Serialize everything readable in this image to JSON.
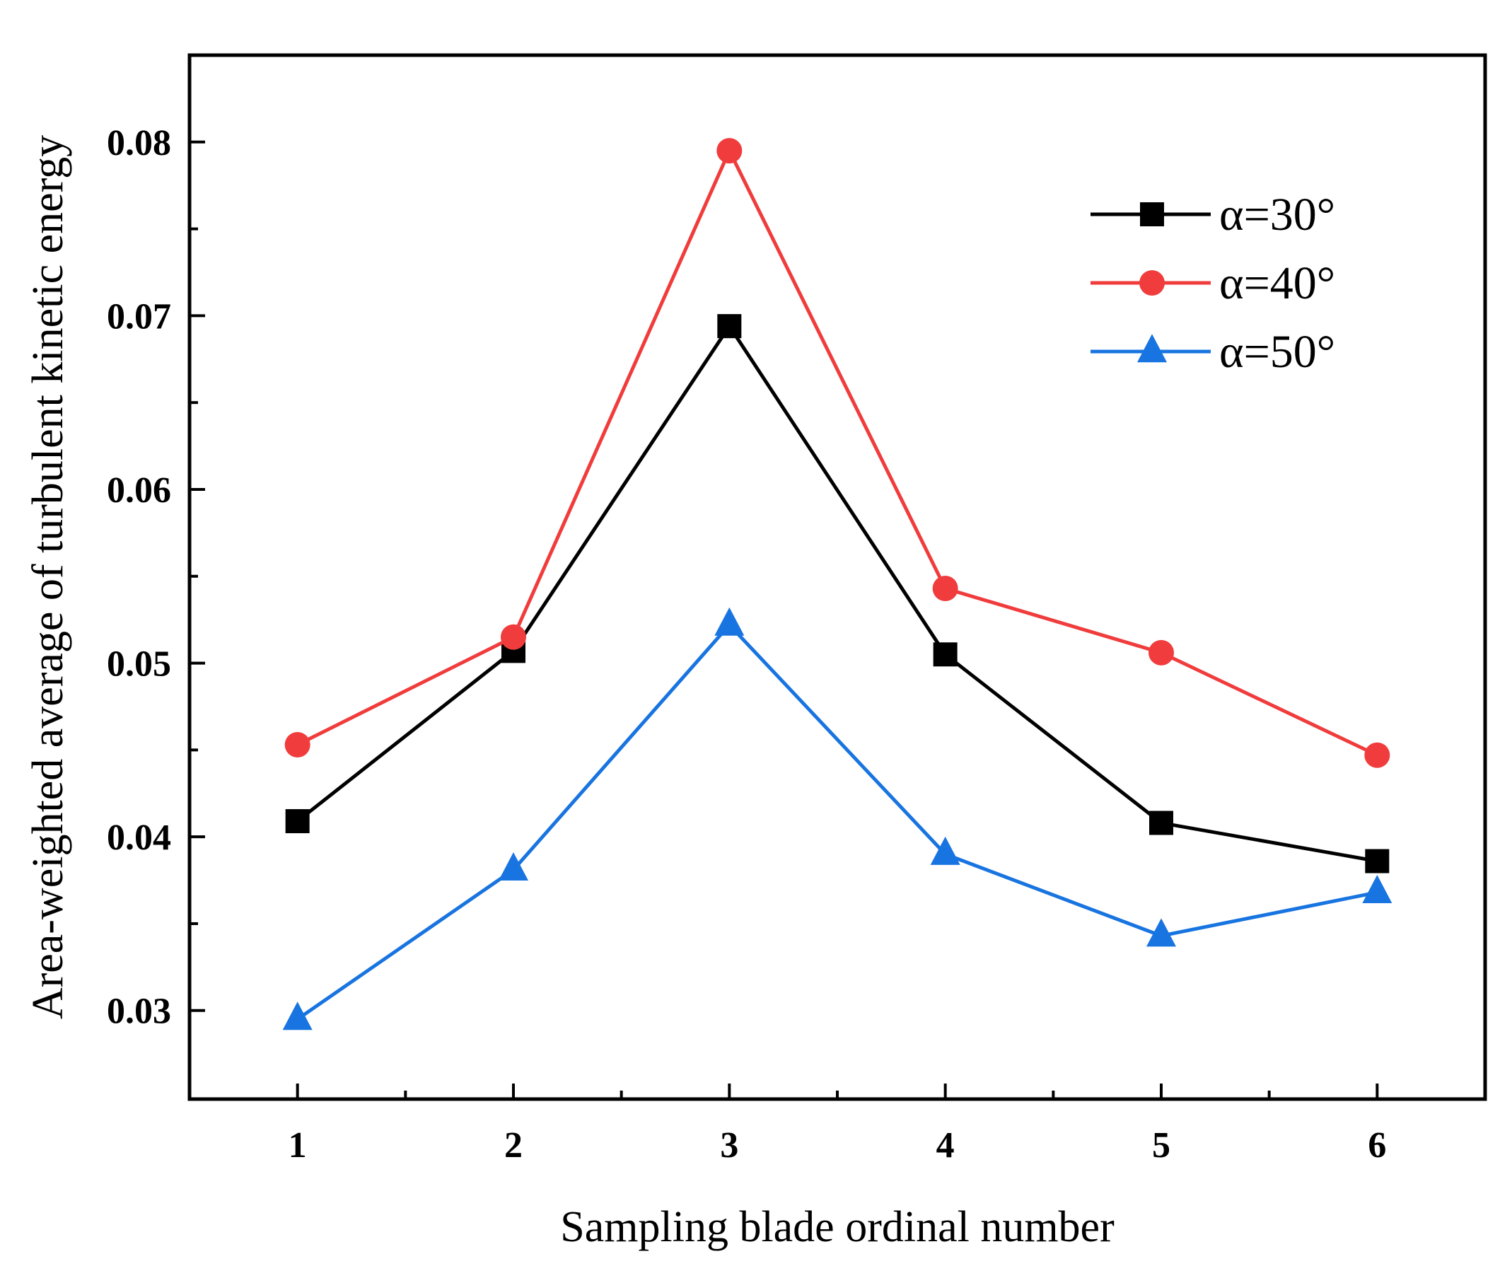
{
  "chart_data": {
    "type": "line",
    "title": "",
    "xlabel": "Sampling blade ordinal number",
    "ylabel": "Area-weighted average of turbulent kinetic energy",
    "x": [
      1,
      2,
      3,
      4,
      5,
      6
    ],
    "x_tick_labels": [
      "1",
      "2",
      "3",
      "4",
      "5",
      "6"
    ],
    "xlim": [
      0.5,
      6.5
    ],
    "ylim": [
      0.0249,
      0.085
    ],
    "y_ticks": [
      0.03,
      0.04,
      0.05,
      0.06,
      0.07,
      0.08
    ],
    "y_tick_labels": [
      "0.03",
      "0.04",
      "0.05",
      "0.06",
      "0.07",
      "0.08"
    ],
    "grid": false,
    "legend_position": "top-right",
    "series": [
      {
        "name": "α=30°",
        "color": "#000000",
        "marker": "square",
        "values": [
          0.0409,
          0.0507,
          0.0694,
          0.0505,
          0.0408,
          0.0386
        ]
      },
      {
        "name": "α=40°",
        "color": "#f03c3c",
        "marker": "circle",
        "values": [
          0.0453,
          0.0515,
          0.0795,
          0.0543,
          0.0506,
          0.0447
        ]
      },
      {
        "name": "α=50°",
        "color": "#1874e0",
        "marker": "triangle",
        "values": [
          0.0295,
          0.0381,
          0.0522,
          0.039,
          0.0343,
          0.0368
        ]
      }
    ]
  }
}
